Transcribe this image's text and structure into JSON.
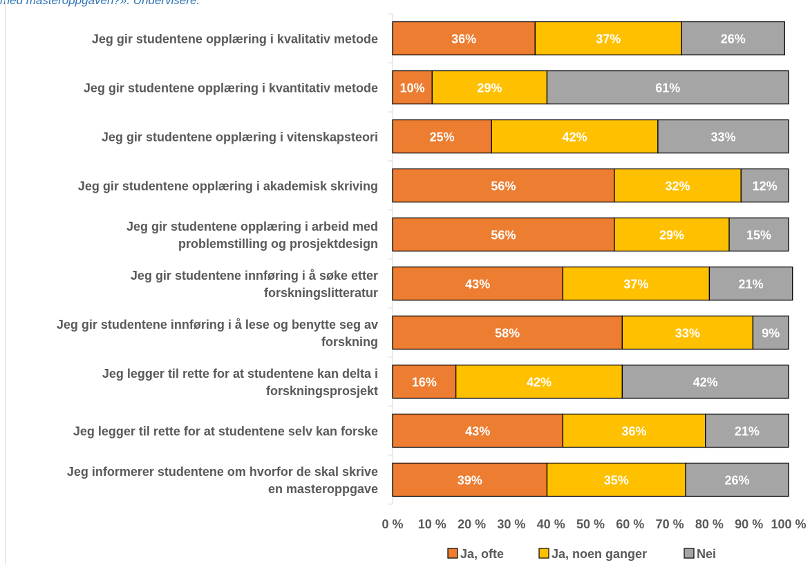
{
  "caption": "med masteroppgaven?». Undervisere.",
  "chart_data": {
    "type": "bar",
    "orientation": "horizontal",
    "stacked": "percent",
    "categories": [
      [
        "Jeg gir studentene opplæring i kvalitativ metode"
      ],
      [
        "Jeg gir studentene opplæring i kvantitativ metode"
      ],
      [
        "Jeg gir studentene opplæring i vitenskapsteori"
      ],
      [
        "Jeg gir studentene opplæring i akademisk skriving"
      ],
      [
        "Jeg gir studentene opplæring i arbeid med",
        "problemstilling og prosjektdesign"
      ],
      [
        "Jeg gir studentene innføring i å søke etter",
        "forskningslitteratur"
      ],
      [
        "Jeg gir studentene innføring i å lese og benytte seg av",
        "forskning"
      ],
      [
        "Jeg legger til rette for at studentene kan delta i",
        "forskningsprosjekt"
      ],
      [
        "Jeg legger til rette for at studentene selv kan forske"
      ],
      [
        "Jeg informerer studentene om hvorfor de skal skrive",
        "en masteroppgave"
      ]
    ],
    "series": [
      {
        "name": "Ja, ofte",
        "color": "#ed7d31",
        "label_color": "#ffffff",
        "values": [
          36,
          10,
          25,
          56,
          56,
          43,
          58,
          16,
          43,
          39
        ]
      },
      {
        "name": "Ja, noen ganger",
        "color": "#ffc000",
        "label_color": "#ffffff",
        "values": [
          37,
          29,
          42,
          32,
          29,
          37,
          33,
          42,
          36,
          35
        ]
      },
      {
        "name": "Nei",
        "color": "#a5a5a5",
        "label_color": "#ffffff",
        "values": [
          26,
          61,
          33,
          12,
          15,
          21,
          9,
          42,
          21,
          26
        ]
      }
    ],
    "xlim": [
      0,
      100
    ],
    "xticks": [
      "0 %",
      "10 %",
      "20 %",
      "30 %",
      "40 %",
      "50 %",
      "60 %",
      "70 %",
      "80 %",
      "90 %",
      "100 %"
    ],
    "legend": "bottom",
    "grid": false
  }
}
